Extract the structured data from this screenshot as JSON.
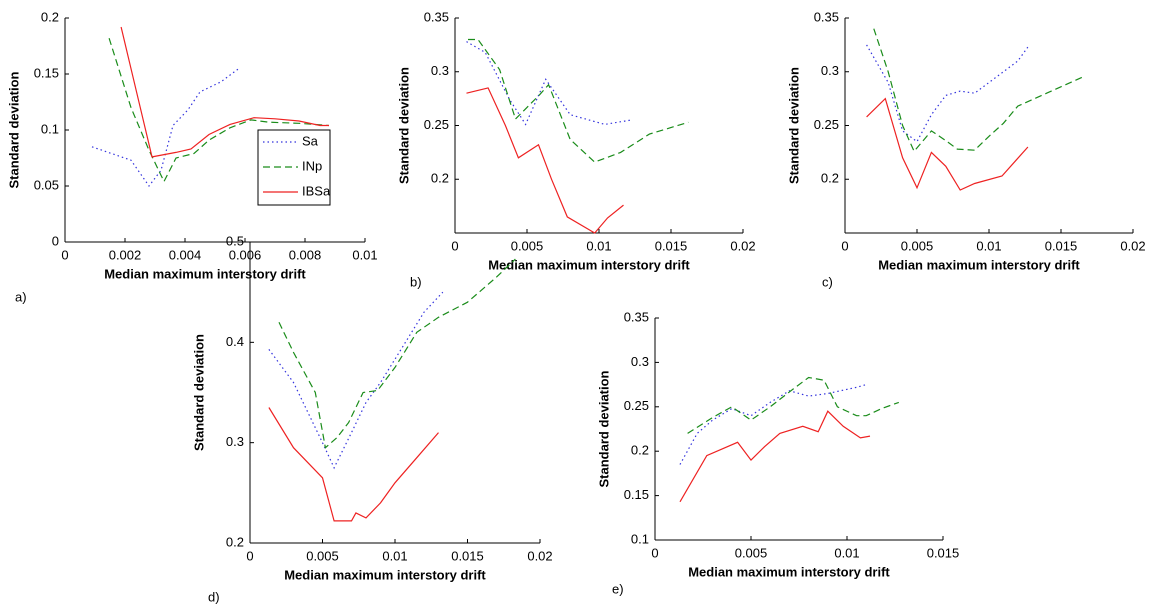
{
  "chart_data": [
    {
      "type": "line",
      "label": "a)",
      "xlabel": "Median maximum interstory drift",
      "ylabel": "Standard deviation",
      "xlim": [
        0,
        0.01
      ],
      "xticks": [
        0,
        0.002,
        0.004,
        0.006,
        0.008,
        0.01
      ],
      "ylim": [
        0,
        0.2
      ],
      "yticks": [
        0,
        0.05,
        0.1,
        0.15,
        0.2
      ],
      "legend": "inside-lower-right",
      "series": [
        {
          "name": "Sa",
          "color": "#3333dd",
          "dash": "dotted",
          "x": [
            0.0009,
            0.0022,
            0.0028,
            0.0032,
            0.0036,
            0.0041,
            0.0045,
            0.0052,
            0.0058
          ],
          "values": [
            0.085,
            0.073,
            0.05,
            0.064,
            0.104,
            0.118,
            0.134,
            0.143,
            0.155
          ]
        },
        {
          "name": "INp",
          "color": "#1a8c1a",
          "dash": "dashed",
          "x": [
            0.00147,
            0.0022,
            0.0028,
            0.0033,
            0.0037,
            0.0043,
            0.0048,
            0.0055,
            0.0062,
            0.0068,
            0.0078,
            0.0088
          ],
          "values": [
            0.182,
            0.12,
            0.082,
            0.054,
            0.075,
            0.079,
            0.091,
            0.102,
            0.109,
            0.107,
            0.106,
            0.104
          ]
        },
        {
          "name": "IBSa",
          "color": "#ee2222",
          "dash": "solid",
          "x": [
            0.00187,
            0.0029,
            0.0037,
            0.0042,
            0.0048,
            0.0055,
            0.0063,
            0.007,
            0.0078,
            0.0085,
            0.0088
          ],
          "values": [
            0.192,
            0.076,
            0.08,
            0.083,
            0.096,
            0.105,
            0.111,
            0.11,
            0.108,
            0.104,
            0.104
          ]
        }
      ]
    },
    {
      "type": "line",
      "label": "b)",
      "xlabel": "Median maximum interstory drift",
      "ylabel": "Standard deviation",
      "xlim": [
        0,
        0.02
      ],
      "xticks": [
        0,
        0.005,
        0.01,
        0.015,
        0.02
      ],
      "ylim": [
        0.15,
        0.35
      ],
      "yticks": [
        0.2,
        0.25,
        0.3,
        0.35
      ],
      "series": [
        {
          "color": "#3333dd",
          "dash": "dotted",
          "x": [
            0.0008,
            0.0021,
            0.0038,
            0.0049,
            0.0063,
            0.008,
            0.0104,
            0.0122
          ],
          "values": [
            0.328,
            0.318,
            0.274,
            0.251,
            0.293,
            0.26,
            0.251,
            0.255
          ]
        },
        {
          "color": "#1a8c1a",
          "dash": "dashed",
          "x": [
            0.0009,
            0.0016,
            0.0031,
            0.0042,
            0.0059,
            0.0065,
            0.008,
            0.0097,
            0.0115,
            0.0135,
            0.0162
          ],
          "values": [
            0.33,
            0.33,
            0.302,
            0.256,
            0.279,
            0.288,
            0.237,
            0.216,
            0.225,
            0.242,
            0.253
          ]
        },
        {
          "color": "#ee2222",
          "dash": "solid",
          "x": [
            0.0008,
            0.0023,
            0.0035,
            0.0044,
            0.0058,
            0.0067,
            0.0078,
            0.0097,
            0.0106,
            0.0117
          ],
          "values": [
            0.28,
            0.285,
            0.25,
            0.22,
            0.232,
            0.2,
            0.165,
            0.15,
            0.164,
            0.176
          ]
        }
      ]
    },
    {
      "type": "line",
      "label": "c)",
      "xlabel": "Median maximum interstory drift",
      "ylabel": "Standard deviation",
      "xlim": [
        0,
        0.02
      ],
      "xticks": [
        0,
        0.005,
        0.01,
        0.015,
        0.02
      ],
      "ylim": [
        0.15,
        0.35
      ],
      "yticks": [
        0.2,
        0.25,
        0.3,
        0.35
      ],
      "series": [
        {
          "color": "#3333dd",
          "dash": "dotted",
          "x": [
            0.0015,
            0.003,
            0.004,
            0.005,
            0.006,
            0.007,
            0.008,
            0.009,
            0.01,
            0.012,
            0.0127
          ],
          "values": [
            0.325,
            0.29,
            0.245,
            0.235,
            0.26,
            0.278,
            0.282,
            0.28,
            0.29,
            0.31,
            0.323
          ]
        },
        {
          "color": "#1a8c1a",
          "dash": "dashed",
          "x": [
            0.002,
            0.003,
            0.004,
            0.0048,
            0.006,
            0.007,
            0.0078,
            0.009,
            0.01,
            0.011,
            0.012,
            0.014,
            0.0165
          ],
          "values": [
            0.34,
            0.3,
            0.25,
            0.226,
            0.245,
            0.236,
            0.228,
            0.227,
            0.24,
            0.252,
            0.268,
            0.28,
            0.295
          ]
        },
        {
          "color": "#ee2222",
          "dash": "solid",
          "x": [
            0.0015,
            0.0028,
            0.004,
            0.005,
            0.006,
            0.007,
            0.008,
            0.009,
            0.0109,
            0.0127
          ],
          "values": [
            0.258,
            0.275,
            0.22,
            0.192,
            0.225,
            0.212,
            0.19,
            0.196,
            0.203,
            0.23
          ]
        }
      ]
    },
    {
      "type": "line",
      "label": "d)",
      "xlabel": "Median maximum interstory drift",
      "ylabel": "Standard deviation",
      "xlim": [
        0,
        0.02
      ],
      "xticks": [
        0,
        0.005,
        0.01,
        0.015,
        0.02
      ],
      "ylim": [
        0.2,
        0.5
      ],
      "yticks": [
        0.2,
        0.3,
        0.4,
        0.5
      ],
      "series": [
        {
          "color": "#3333dd",
          "dash": "dotted",
          "x": [
            0.0013,
            0.003,
            0.004,
            0.005,
            0.0058,
            0.007,
            0.008,
            0.009,
            0.0105,
            0.012,
            0.0133
          ],
          "values": [
            0.393,
            0.36,
            0.33,
            0.3,
            0.275,
            0.31,
            0.34,
            0.36,
            0.395,
            0.43,
            0.45
          ]
        },
        {
          "color": "#1a8c1a",
          "dash": "dashed",
          "x": [
            0.002,
            0.003,
            0.0045,
            0.0052,
            0.006,
            0.0068,
            0.0078,
            0.0088,
            0.01,
            0.0115,
            0.013,
            0.015,
            0.017,
            0.0183
          ],
          "values": [
            0.42,
            0.39,
            0.35,
            0.295,
            0.305,
            0.32,
            0.35,
            0.352,
            0.375,
            0.41,
            0.425,
            0.44,
            0.465,
            0.483
          ]
        },
        {
          "color": "#ee2222",
          "dash": "solid",
          "x": [
            0.0013,
            0.003,
            0.005,
            0.0058,
            0.007,
            0.0073,
            0.008,
            0.009,
            0.01,
            0.0115,
            0.013
          ],
          "values": [
            0.335,
            0.295,
            0.265,
            0.222,
            0.222,
            0.23,
            0.225,
            0.24,
            0.26,
            0.285,
            0.31
          ]
        }
      ]
    },
    {
      "type": "line",
      "label": "e)",
      "xlabel": "Median maximum interstory drift",
      "ylabel": "Standard deviation",
      "xlim": [
        0,
        0.015
      ],
      "xticks": [
        0,
        0.005,
        0.01,
        0.015
      ],
      "ylim": [
        0.1,
        0.35
      ],
      "yticks": [
        0.1,
        0.15,
        0.2,
        0.25,
        0.3,
        0.35
      ],
      "series": [
        {
          "color": "#3333dd",
          "dash": "dotted",
          "x": [
            0.0013,
            0.0022,
            0.003,
            0.004,
            0.005,
            0.006,
            0.007,
            0.008,
            0.009,
            0.0105,
            0.011
          ],
          "values": [
            0.185,
            0.22,
            0.235,
            0.248,
            0.24,
            0.255,
            0.268,
            0.262,
            0.265,
            0.272,
            0.275
          ]
        },
        {
          "color": "#1a8c1a",
          "dash": "dashed",
          "x": [
            0.0017,
            0.003,
            0.004,
            0.005,
            0.006,
            0.0072,
            0.008,
            0.0088,
            0.0095,
            0.0105,
            0.011,
            0.0118,
            0.0127
          ],
          "values": [
            0.22,
            0.238,
            0.25,
            0.235,
            0.25,
            0.27,
            0.283,
            0.28,
            0.25,
            0.24,
            0.24,
            0.248,
            0.255
          ]
        },
        {
          "color": "#ee2222",
          "dash": "solid",
          "x": [
            0.0013,
            0.0027,
            0.0043,
            0.005,
            0.0057,
            0.0065,
            0.0077,
            0.0085,
            0.009,
            0.0098,
            0.0107,
            0.0112
          ],
          "values": [
            0.143,
            0.195,
            0.21,
            0.19,
            0.205,
            0.22,
            0.228,
            0.222,
            0.245,
            0.228,
            0.215,
            0.217
          ]
        }
      ]
    }
  ]
}
